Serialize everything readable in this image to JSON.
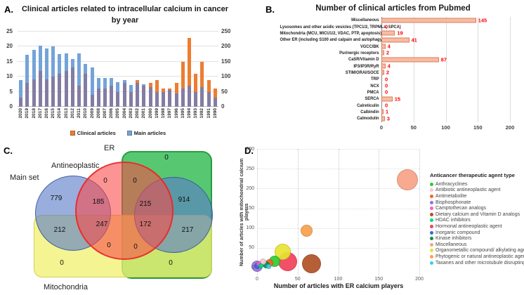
{
  "labels": {
    "a": "A.",
    "b": "B.",
    "c": "C.",
    "d": "D."
  },
  "chart_data": [
    {
      "id": "articles-by-year",
      "type": "bar",
      "title": "Clinical articles related to intracellular calcium in cancer by year",
      "categories": [
        2020,
        2019,
        2018,
        2017,
        2016,
        2015,
        2014,
        2013,
        2012,
        2011,
        2010,
        2009,
        2008,
        2007,
        2006,
        2005,
        2004,
        2003,
        2002,
        2001,
        2000,
        1999,
        1998,
        1997,
        1996,
        1995,
        1994,
        1993,
        1992,
        1991,
        1990
      ],
      "series": [
        {
          "name": "Clinical articles",
          "axis": "left",
          "values": [
            3,
            8,
            9,
            12,
            9,
            10,
            11,
            12,
            13,
            7,
            11,
            4,
            6,
            6,
            7,
            5,
            8,
            5,
            9,
            7,
            8,
            9,
            6,
            6,
            8,
            15,
            23,
            11,
            15,
            9,
            6
          ]
        },
        {
          "name": "Main articles",
          "axis": "right",
          "values": [
            88,
            173,
            190,
            203,
            195,
            200,
            175,
            178,
            160,
            178,
            142,
            130,
            97,
            95,
            97,
            82,
            90,
            73,
            80,
            74,
            65,
            50,
            50,
            55,
            45,
            60,
            70,
            50,
            65,
            48,
            30
          ]
        }
      ],
      "left_axis_ticks": [
        0,
        5,
        10,
        15,
        20,
        25
      ],
      "right_axis_ticks": [
        0,
        50,
        100,
        150,
        200,
        250
      ],
      "legend": [
        {
          "label": "Clinical articles",
          "color": "#ED7D31"
        },
        {
          "label": "Main articles",
          "color": "#74A3D8"
        }
      ],
      "colors": {
        "clinical": "#ED7D31",
        "main": "#74A3D8",
        "overlap": "#837CA2"
      }
    },
    {
      "id": "clinical-articles-pubmed",
      "type": "bar",
      "orientation": "horizontal",
      "title": "Number of clinical articles from Pubmed",
      "categories": [
        "Miscellaneous",
        "Lysosomes and other acidic vesicles (TPC1/2, TRPMLs, SPCA)",
        "Mitochondria (MCU, MICU1/2, VDAC, PTP, apoptosis)",
        "Other ER (including S100 and calpain and autophagy)",
        "VGCC/BK",
        "Purinergic receptors",
        "CaSR/Vitamin D",
        "IP3/IP3R/RyR",
        "STIM/ORAI/SOCE",
        "TRP",
        "NCX",
        "PMCA",
        "SERCA",
        "Calreticulin",
        "Calbindin",
        "Calmodulin"
      ],
      "values": [
        145,
        0,
        19,
        41,
        4,
        2,
        87,
        4,
        2,
        0,
        0,
        0,
        15,
        0,
        1,
        3
      ],
      "xticks": [
        0,
        50,
        100,
        150,
        200
      ],
      "xlim": [
        0,
        200
      ],
      "bar_fill": "#F6BCA2",
      "bar_border": "#DE7B5C",
      "value_color": "#FF0000"
    },
    {
      "id": "venn-article-sets",
      "type": "venn",
      "set_labels": {
        "main": "Main set",
        "antineoplastic": "Antineoplastic",
        "er": "ER",
        "mitochondria": "Mitochondria"
      },
      "regions": {
        "main_only": 779,
        "antineoplastic_only": 0,
        "antineoplastic_er": 0,
        "main_er": 914,
        "main_antineoplastic": 185,
        "main_antineoplastic_er": 215,
        "main_mitochondria": 212,
        "main_antineoplastic_mitochondria": 247,
        "main_antineoplastic_er_mitochondria": 172,
        "main_er_mitochondria": 217,
        "antineoplastic_mitochondria": 0,
        "antineoplastic_er_mitochondria": 0,
        "er_only": 0,
        "mitochondria_only": 0,
        "er_mitochondria": 0
      }
    },
    {
      "id": "agent-bubble-chart",
      "type": "scatter",
      "xlabel": "Number of articles with ER calcium players",
      "ylabel": "Number of articles with mitochondrial calcium players",
      "xticks": [
        0,
        50,
        100,
        150,
        200
      ],
      "yticks": [
        0,
        50,
        100,
        150,
        200,
        250,
        300
      ],
      "xlim": [
        0,
        200
      ],
      "ylim": [
        0,
        300
      ],
      "legend_title": "Anticancer therapeutic agent type",
      "legend": [
        {
          "name": "Anthracyclines",
          "color": "#2FCC2F"
        },
        {
          "name": "Antibiotic antineoplastic agent",
          "color": "#F8C3D9"
        },
        {
          "name": "Antimetabolite",
          "color": "#F4632A"
        },
        {
          "name": "Bisphosphonate",
          "color": "#9A6ED8"
        },
        {
          "name": "Camptothecan analogs",
          "color": "#EF63C9"
        },
        {
          "name": "Dietary calcium and Vitamin D analogs",
          "color": "#B05226"
        },
        {
          "name": "HDAC inhibitors",
          "color": "#00DC7C"
        },
        {
          "name": "Hormonal antineoplastic agent",
          "color": "#F2415B"
        },
        {
          "name": "Inorganic compound",
          "color": "#3F62DE"
        },
        {
          "name": "Kinase inhibitors",
          "color": "#0E8C4A"
        },
        {
          "name": "Miscellaneous",
          "color": "#F7A386"
        },
        {
          "name": "Organometallic compound/ alkylating agent",
          "color": "#E8E431"
        },
        {
          "name": "Phytogenic or natural antineoplastic agent",
          "color": "#F9A04D"
        },
        {
          "name": "Taxanes and other microtubule disrupting agent",
          "color": "#35CFE9"
        }
      ],
      "points": [
        {
          "agent": "Miscellaneous",
          "x": 185,
          "y": 222,
          "size": 30
        },
        {
          "agent": "Dietary calcium and Vitamin D analogs",
          "x": 67,
          "y": 10,
          "size": 27
        },
        {
          "agent": "Hormonal antineoplastic agent",
          "x": 38,
          "y": 15,
          "size": 27
        },
        {
          "agent": "Organometallic compound/ alkylating agent",
          "x": 32,
          "y": 40,
          "size": 23
        },
        {
          "agent": "Phytogenic or natural antineoplastic agent",
          "x": 61,
          "y": 94,
          "size": 17
        },
        {
          "agent": "Anthracyclines",
          "x": 22,
          "y": 16,
          "size": 16
        },
        {
          "agent": "Bisphosphonate",
          "x": 0,
          "y": 4,
          "size": 16
        },
        {
          "agent": "Antimetabolite",
          "x": 15,
          "y": 11,
          "size": 11
        },
        {
          "agent": "Kinase inhibitors",
          "x": 11,
          "y": 7,
          "size": 10
        },
        {
          "agent": "Antibiotic antineoplastic agent",
          "x": 7,
          "y": 15,
          "size": 9
        },
        {
          "agent": "Inorganic compound",
          "x": 0,
          "y": 4,
          "size": 9
        },
        {
          "agent": "Camptothecan analogs",
          "x": 2,
          "y": 10,
          "size": 7
        },
        {
          "agent": "HDAC inhibitors",
          "x": 5,
          "y": 4,
          "size": 7
        },
        {
          "agent": "Taxanes and other microtubule disrupting agent",
          "x": 14,
          "y": 2,
          "size": 7
        }
      ]
    }
  ]
}
